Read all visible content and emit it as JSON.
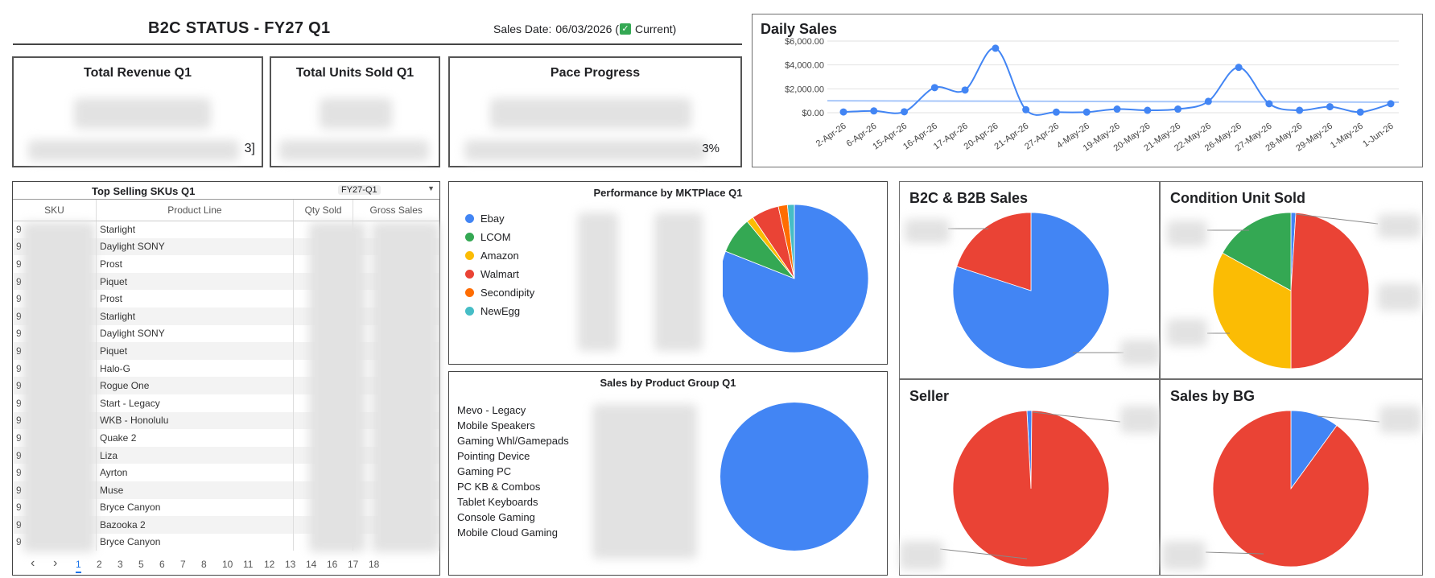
{
  "header": {
    "title": "B2C STATUS - FY27 Q1",
    "sales_date_label": "Sales Date:",
    "sales_date_value": "06/03/2026 (",
    "current_label": "Current)"
  },
  "kpis": {
    "revenue_title": "Total Revenue Q1",
    "units_title": "Total Units Sold Q1",
    "pace_title": "Pace Progress",
    "revenue_tail": "3]",
    "pace_tail": "3%"
  },
  "daily_sales": {
    "title": "Daily Sales",
    "chart_data": {
      "type": "line",
      "title": "Daily Sales",
      "x": [
        "2-Apr-26",
        "6-Apr-26",
        "15-Apr-26",
        "16-Apr-26",
        "17-Apr-26",
        "20-Apr-26",
        "21-Apr-26",
        "27-Apr-26",
        "4-May-26",
        "19-May-26",
        "20-May-26",
        "21-May-26",
        "22-May-26",
        "26-May-26",
        "27-May-26",
        "28-May-26",
        "29-May-26",
        "1-May-26",
        "1-Jun-26"
      ],
      "values": [
        60,
        150,
        80,
        2100,
        1900,
        5400,
        250,
        50,
        50,
        300,
        200,
        300,
        950,
        3800,
        750,
        200,
        500,
        50,
        750
      ],
      "trend": [
        1000,
        880
      ],
      "y_ticks": [
        "$0.00",
        "$2,000.00",
        "$4,000.00",
        "$6,000.00"
      ],
      "ylim": [
        0,
        6000
      ],
      "color": "#4285f4"
    }
  },
  "top_skus": {
    "title": "Top Selling SKUs Q1",
    "filter_value": "FY27-Q1",
    "columns": [
      "SKU",
      "Product Line",
      "Qty Sold",
      "Gross Sales"
    ],
    "sku_prefix": "9",
    "rows": [
      "Starlight",
      "Daylight SONY",
      "Prost",
      "Piquet",
      "Prost",
      "Starlight",
      "Daylight SONY",
      "Piquet",
      "Halo-G",
      "Rogue One",
      "Start - Legacy",
      "WKB - Honolulu",
      "Quake 2",
      "Liza",
      "Ayrton",
      "Muse",
      "Bryce Canyon",
      "Bazooka 2",
      "Bryce Canyon"
    ],
    "pages": [
      "1",
      "2",
      "3",
      "5",
      "6",
      "7",
      "8",
      "10",
      "11",
      "12",
      "13",
      "14",
      "16",
      "17",
      "18"
    ],
    "prev": "‹",
    "next": "›"
  },
  "mktplace": {
    "title": "Performance by MKTPlace Q1",
    "chart_data": {
      "type": "pie",
      "labels": [
        "Ebay",
        "LCOM",
        "Amazon",
        "Walmart",
        "Secondipity",
        "NewEgg"
      ],
      "values": [
        81,
        8,
        1.5,
        6,
        2,
        1.5
      ],
      "colors": [
        "#4285f4",
        "#34a853",
        "#fbbc04",
        "#ea4335",
        "#ff6d01",
        "#46bdc6"
      ]
    }
  },
  "product_group": {
    "title": "Sales by Product Group Q1",
    "items": [
      "Mevo  - Legacy",
      "Mobile Speakers",
      "Gaming Whl/Gamepads",
      "Pointing Device",
      "Gaming PC",
      "PC KB & Combos",
      "Tablet Keyboards",
      "Console Gaming",
      "Mobile Cloud Gaming"
    ],
    "chart_data": {
      "type": "pie",
      "labels": [
        "Mevo  - Legacy"
      ],
      "values": [
        100
      ],
      "colors": [
        "#4285f4"
      ]
    }
  },
  "b2c_b2b": {
    "title": "B2C & B2B Sales",
    "chart_data": {
      "type": "pie",
      "values": [
        80,
        20
      ],
      "colors": [
        "#4285f4",
        "#ea4335"
      ]
    }
  },
  "condition": {
    "title": "Condition Unit Sold",
    "chart_data": {
      "type": "pie",
      "values": [
        1,
        49,
        33,
        17
      ],
      "colors": [
        "#4285f4",
        "#ea4335",
        "#fbbc04",
        "#34a853"
      ]
    }
  },
  "seller": {
    "title": "Seller",
    "chart_data": {
      "type": "pie",
      "values": [
        1,
        99
      ],
      "colors": [
        "#4285f4",
        "#ea4335"
      ]
    }
  },
  "sales_bg": {
    "title": "Sales by BG",
    "chart_data": {
      "type": "pie",
      "values": [
        10,
        90
      ],
      "colors": [
        "#4285f4",
        "#ea4335"
      ]
    }
  }
}
